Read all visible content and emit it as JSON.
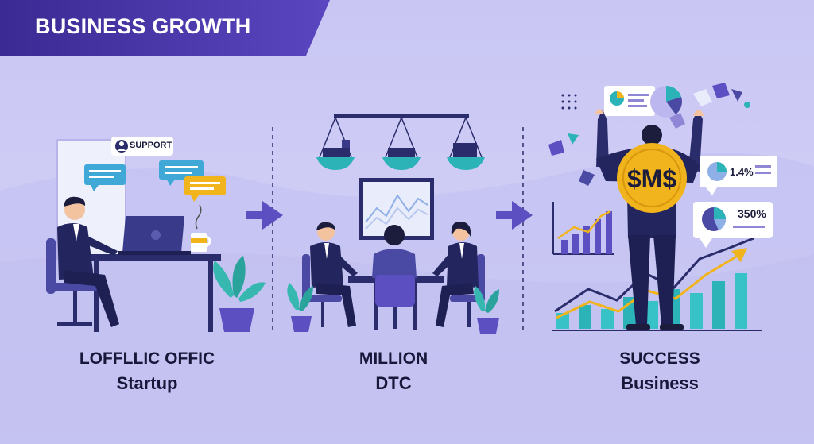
{
  "header": {
    "title": "BUSINESS GROWTH"
  },
  "stages": [
    {
      "line1": "LOFFLLIC OFFIC",
      "line2": "Startup"
    },
    {
      "line1": "MILLION",
      "line2": "DTC"
    },
    {
      "line1": "SUCCESS",
      "line2": "Business"
    }
  ],
  "startup_scene": {
    "support_label": "SUPPORT"
  },
  "success_scene": {
    "coin_text": "$M$",
    "stat_1": "1.4%",
    "stat_2": "350%",
    "bar_values": [
      2,
      3,
      2.5,
      4,
      3.5,
      5,
      4.5,
      6,
      7
    ]
  },
  "colors": {
    "background": "#cfcdf6",
    "banner": "#4b3aa8",
    "navy": "#2a2c6b",
    "purple": "#5b4fc2",
    "teal": "#2bb3b8",
    "gold": "#f2b41c"
  }
}
